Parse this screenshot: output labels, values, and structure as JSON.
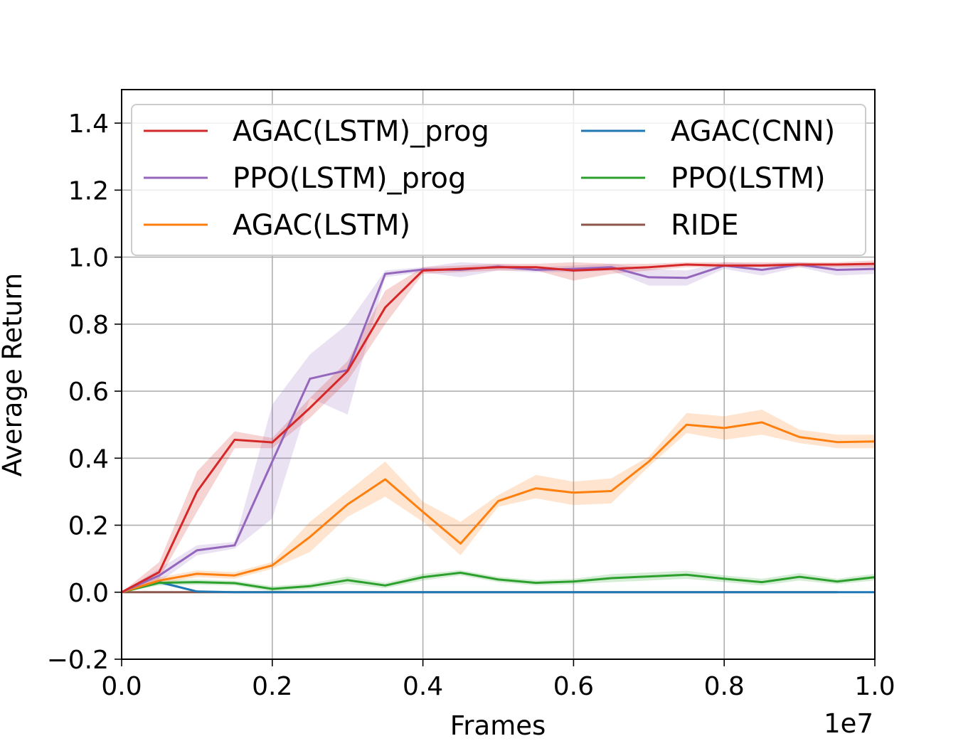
{
  "chart_data": {
    "type": "line",
    "title": "",
    "xlabel": "Frames",
    "ylabel": "Average Return",
    "x_offset_label": "1e7",
    "xlim": [
      0.0,
      1.0
    ],
    "ylim": [
      -0.2,
      1.5
    ],
    "xticks": [
      "0.0",
      "0.2",
      "0.4",
      "0.6",
      "0.8",
      "1.0"
    ],
    "yticks": [
      "−0.2",
      "0.0",
      "0.2",
      "0.4",
      "0.6",
      "0.8",
      "1.0",
      "1.2",
      "1.4"
    ],
    "grid": true,
    "legend_position": "upper-center",
    "series": [
      {
        "name": "AGAC(LSTM)_prog",
        "color": "#d62728",
        "x": [
          0,
          0.05,
          0.1,
          0.15,
          0.2,
          0.25,
          0.3,
          0.35,
          0.4,
          0.45,
          0.5,
          0.55,
          0.6,
          0.65,
          0.7,
          0.75,
          0.8,
          0.85,
          0.9,
          0.95,
          1.0
        ],
        "y": [
          0.0,
          0.06,
          0.3,
          0.455,
          0.447,
          0.55,
          0.66,
          0.85,
          0.96,
          0.965,
          0.97,
          0.97,
          0.96,
          0.965,
          0.97,
          0.978,
          0.975,
          0.975,
          0.978,
          0.978,
          0.98
        ],
        "lower": [
          0.0,
          0.04,
          0.24,
          0.43,
          0.43,
          0.52,
          0.63,
          0.8,
          0.95,
          0.955,
          0.96,
          0.96,
          0.93,
          0.95,
          0.96,
          0.97,
          0.97,
          0.97,
          0.97,
          0.97,
          0.97
        ],
        "upper": [
          0.0,
          0.09,
          0.36,
          0.48,
          0.46,
          0.58,
          0.69,
          0.9,
          0.97,
          0.975,
          0.98,
          0.98,
          0.985,
          0.98,
          0.98,
          0.985,
          0.985,
          0.985,
          0.985,
          0.985,
          0.99
        ]
      },
      {
        "name": "PPO(LSTM)_prog",
        "color": "#9467bd",
        "x": [
          0,
          0.05,
          0.1,
          0.15,
          0.2,
          0.25,
          0.3,
          0.35,
          0.4,
          0.45,
          0.5,
          0.55,
          0.6,
          0.65,
          0.7,
          0.75,
          0.8,
          0.85,
          0.9,
          0.95,
          1.0
        ],
        "y": [
          0.0,
          0.05,
          0.125,
          0.14,
          0.39,
          0.637,
          0.663,
          0.95,
          0.963,
          0.962,
          0.972,
          0.962,
          0.965,
          0.97,
          0.94,
          0.938,
          0.975,
          0.962,
          0.978,
          0.962,
          0.965
        ],
        "lower": [
          0.0,
          0.03,
          0.11,
          0.13,
          0.22,
          0.58,
          0.53,
          0.94,
          0.955,
          0.94,
          0.96,
          0.955,
          0.955,
          0.96,
          0.915,
          0.915,
          0.965,
          0.945,
          0.97,
          0.945,
          0.95
        ],
        "upper": [
          0.0,
          0.07,
          0.14,
          0.15,
          0.56,
          0.71,
          0.8,
          0.96,
          0.97,
          0.985,
          0.98,
          0.97,
          0.975,
          0.98,
          0.965,
          0.96,
          0.985,
          0.98,
          0.985,
          0.975,
          0.98
        ]
      },
      {
        "name": "AGAC(LSTM)",
        "color": "#ff7f0e",
        "x": [
          0,
          0.05,
          0.1,
          0.15,
          0.2,
          0.25,
          0.3,
          0.35,
          0.4,
          0.45,
          0.5,
          0.55,
          0.6,
          0.65,
          0.7,
          0.75,
          0.8,
          0.85,
          0.9,
          0.95,
          1.0
        ],
        "y": [
          0.0,
          0.035,
          0.055,
          0.05,
          0.08,
          0.165,
          0.262,
          0.337,
          0.24,
          0.145,
          0.272,
          0.31,
          0.297,
          0.302,
          0.39,
          0.5,
          0.49,
          0.507,
          0.463,
          0.448,
          0.45
        ],
        "lower": [
          0.0,
          0.025,
          0.045,
          0.04,
          0.07,
          0.12,
          0.225,
          0.285,
          0.21,
          0.11,
          0.255,
          0.28,
          0.26,
          0.265,
          0.375,
          0.475,
          0.455,
          0.47,
          0.445,
          0.43,
          0.43
        ],
        "upper": [
          0.0,
          0.045,
          0.065,
          0.06,
          0.09,
          0.21,
          0.3,
          0.39,
          0.27,
          0.21,
          0.29,
          0.35,
          0.33,
          0.34,
          0.405,
          0.535,
          0.525,
          0.545,
          0.485,
          0.47,
          0.47
        ]
      },
      {
        "name": "AGAC(CNN)",
        "color": "#1f77b4",
        "x": [
          0,
          0.05,
          0.1,
          0.15,
          0.2,
          0.4,
          0.6,
          0.8,
          0.95,
          1.0
        ],
        "y": [
          0.0,
          0.03,
          0.002,
          0.0,
          0.0,
          0.0,
          0.0,
          0.0,
          0.0,
          0.0
        ],
        "lower": [
          0.0,
          0.025,
          0.0,
          0.0,
          0.0,
          0.0,
          0.0,
          0.0,
          0.0,
          0.0
        ],
        "upper": [
          0.0,
          0.035,
          0.005,
          0.0,
          0.0,
          0.0,
          0.0,
          0.0,
          0.0,
          0.0
        ]
      },
      {
        "name": "PPO(LSTM)",
        "color": "#2ca02c",
        "x": [
          0,
          0.05,
          0.1,
          0.15,
          0.2,
          0.25,
          0.3,
          0.35,
          0.4,
          0.45,
          0.5,
          0.55,
          0.6,
          0.65,
          0.7,
          0.75,
          0.8,
          0.85,
          0.9,
          0.95,
          1.0
        ],
        "y": [
          0.0,
          0.028,
          0.03,
          0.027,
          0.01,
          0.018,
          0.036,
          0.02,
          0.045,
          0.058,
          0.038,
          0.028,
          0.032,
          0.042,
          0.047,
          0.052,
          0.04,
          0.03,
          0.046,
          0.032,
          0.045
        ],
        "lower": [
          0.0,
          0.02,
          0.022,
          0.02,
          0.002,
          0.01,
          0.025,
          0.012,
          0.035,
          0.05,
          0.03,
          0.02,
          0.024,
          0.03,
          0.035,
          0.04,
          0.03,
          0.02,
          0.035,
          0.024,
          0.035
        ],
        "upper": [
          0.0,
          0.036,
          0.038,
          0.034,
          0.018,
          0.026,
          0.047,
          0.028,
          0.055,
          0.066,
          0.046,
          0.036,
          0.04,
          0.054,
          0.059,
          0.064,
          0.05,
          0.04,
          0.057,
          0.04,
          0.055
        ]
      },
      {
        "name": "RIDE",
        "color": "#8c564b",
        "x": [
          0,
          0.95
        ],
        "y": [
          0.0,
          0.0
        ]
      }
    ]
  }
}
